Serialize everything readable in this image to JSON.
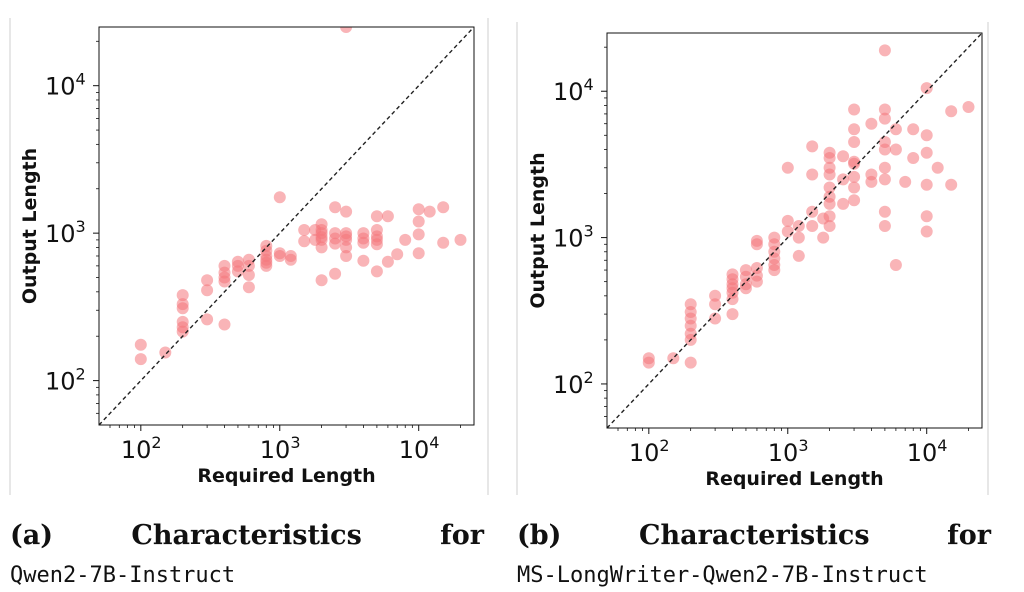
{
  "chart_data": [
    {
      "type": "scatter",
      "title": "",
      "xlabel": "Required Length",
      "ylabel": "Output Length",
      "xscale": "log",
      "yscale": "log",
      "xlim": [
        50,
        25000
      ],
      "ylim": [
        50,
        25000
      ],
      "grid": false,
      "reference_line": "y = x (dashed, black)",
      "x_ticks": [
        {
          "value": 100,
          "base": "10",
          "exp": "2"
        },
        {
          "value": 1000,
          "base": "10",
          "exp": "3"
        },
        {
          "value": 10000,
          "base": "10",
          "exp": "4"
        }
      ],
      "y_ticks": [
        {
          "value": 100,
          "base": "10",
          "exp": "2"
        },
        {
          "value": 1000,
          "base": "10",
          "exp": "3"
        },
        {
          "value": 10000,
          "base": "10",
          "exp": "4"
        }
      ],
      "marker_color": "#f4777b",
      "points": [
        [
          100,
          175
        ],
        [
          100,
          140
        ],
        [
          150,
          155
        ],
        [
          200,
          380
        ],
        [
          200,
          330
        ],
        [
          200,
          310
        ],
        [
          200,
          250
        ],
        [
          200,
          230
        ],
        [
          200,
          215
        ],
        [
          300,
          480
        ],
        [
          300,
          410
        ],
        [
          300,
          260
        ],
        [
          400,
          600
        ],
        [
          400,
          540
        ],
        [
          400,
          500
        ],
        [
          400,
          470
        ],
        [
          400,
          240
        ],
        [
          500,
          640
        ],
        [
          500,
          600
        ],
        [
          500,
          550
        ],
        [
          600,
          660
        ],
        [
          600,
          600
        ],
        [
          600,
          520
        ],
        [
          600,
          430
        ],
        [
          800,
          820
        ],
        [
          800,
          760
        ],
        [
          800,
          700
        ],
        [
          800,
          660
        ],
        [
          800,
          630
        ],
        [
          800,
          600
        ],
        [
          1000,
          1750
        ],
        [
          1000,
          730
        ],
        [
          1000,
          700
        ],
        [
          1200,
          700
        ],
        [
          1200,
          660
        ],
        [
          1500,
          1050
        ],
        [
          1500,
          880
        ],
        [
          1800,
          1050
        ],
        [
          1800,
          900
        ],
        [
          2000,
          1150
        ],
        [
          2000,
          1050
        ],
        [
          2000,
          1000
        ],
        [
          2000,
          940
        ],
        [
          2000,
          900
        ],
        [
          2000,
          800
        ],
        [
          2000,
          480
        ],
        [
          2500,
          1500
        ],
        [
          2500,
          1000
        ],
        [
          2500,
          920
        ],
        [
          2500,
          850
        ],
        [
          2500,
          530
        ],
        [
          3000,
          1400
        ],
        [
          3000,
          1000
        ],
        [
          3000,
          950
        ],
        [
          3000,
          900
        ],
        [
          3000,
          800
        ],
        [
          3000,
          700
        ],
        [
          3000,
          25000
        ],
        [
          4000,
          1000
        ],
        [
          4000,
          920
        ],
        [
          4000,
          860
        ],
        [
          4000,
          650
        ],
        [
          5000,
          1300
        ],
        [
          5000,
          1050
        ],
        [
          5000,
          950
        ],
        [
          5000,
          900
        ],
        [
          5000,
          840
        ],
        [
          5000,
          550
        ],
        [
          6000,
          1300
        ],
        [
          6000,
          640
        ],
        [
          7000,
          720
        ],
        [
          8000,
          900
        ],
        [
          10000,
          1450
        ],
        [
          10000,
          1200
        ],
        [
          10000,
          980
        ],
        [
          10000,
          730
        ],
        [
          12000,
          1400
        ],
        [
          15000,
          1500
        ],
        [
          15000,
          860
        ],
        [
          20000,
          900
        ]
      ]
    },
    {
      "type": "scatter",
      "title": "",
      "xlabel": "Required Length",
      "ylabel": "Output Length",
      "xscale": "log",
      "yscale": "log",
      "xlim": [
        50,
        25000
      ],
      "ylim": [
        50,
        25000
      ],
      "grid": false,
      "reference_line": "y = x (dashed, black)",
      "x_ticks": [
        {
          "value": 100,
          "base": "10",
          "exp": "2"
        },
        {
          "value": 1000,
          "base": "10",
          "exp": "3"
        },
        {
          "value": 10000,
          "base": "10",
          "exp": "4"
        }
      ],
      "y_ticks": [
        {
          "value": 100,
          "base": "10",
          "exp": "2"
        },
        {
          "value": 1000,
          "base": "10",
          "exp": "3"
        },
        {
          "value": 10000,
          "base": "10",
          "exp": "4"
        }
      ],
      "marker_color": "#f4777b",
      "points": [
        [
          100,
          150
        ],
        [
          100,
          140
        ],
        [
          150,
          150
        ],
        [
          200,
          350
        ],
        [
          200,
          310
        ],
        [
          200,
          280
        ],
        [
          200,
          250
        ],
        [
          200,
          220
        ],
        [
          200,
          200
        ],
        [
          200,
          140
        ],
        [
          300,
          400
        ],
        [
          300,
          350
        ],
        [
          300,
          280
        ],
        [
          400,
          560
        ],
        [
          400,
          520
        ],
        [
          400,
          480
        ],
        [
          400,
          450
        ],
        [
          400,
          420
        ],
        [
          400,
          380
        ],
        [
          400,
          300
        ],
        [
          500,
          600
        ],
        [
          500,
          540
        ],
        [
          500,
          480
        ],
        [
          500,
          450
        ],
        [
          600,
          950
        ],
        [
          600,
          900
        ],
        [
          600,
          620
        ],
        [
          600,
          550
        ],
        [
          600,
          500
        ],
        [
          800,
          1000
        ],
        [
          800,
          900
        ],
        [
          800,
          800
        ],
        [
          800,
          720
        ],
        [
          800,
          650
        ],
        [
          800,
          600
        ],
        [
          1000,
          3000
        ],
        [
          1000,
          1300
        ],
        [
          1000,
          1100
        ],
        [
          1200,
          1200
        ],
        [
          1200,
          1000
        ],
        [
          1200,
          750
        ],
        [
          1500,
          4200
        ],
        [
          1500,
          2700
        ],
        [
          1500,
          1500
        ],
        [
          1500,
          1200
        ],
        [
          1800,
          1350
        ],
        [
          1800,
          1000
        ],
        [
          2000,
          3800
        ],
        [
          2000,
          3500
        ],
        [
          2000,
          3000
        ],
        [
          2000,
          2700
        ],
        [
          2000,
          2200
        ],
        [
          2000,
          1900
        ],
        [
          2000,
          1700
        ],
        [
          2000,
          1400
        ],
        [
          2000,
          1200
        ],
        [
          2500,
          3600
        ],
        [
          2500,
          2500
        ],
        [
          2500,
          1700
        ],
        [
          3000,
          7500
        ],
        [
          3000,
          5500
        ],
        [
          3000,
          4500
        ],
        [
          3000,
          3300
        ],
        [
          3000,
          3200
        ],
        [
          3000,
          2600
        ],
        [
          3000,
          2200
        ],
        [
          3000,
          1800
        ],
        [
          4000,
          6000
        ],
        [
          4000,
          2700
        ],
        [
          4000,
          2400
        ],
        [
          5000,
          19000
        ],
        [
          5000,
          7500
        ],
        [
          5000,
          6500
        ],
        [
          5000,
          4500
        ],
        [
          5000,
          4000
        ],
        [
          5000,
          3000
        ],
        [
          5000,
          2500
        ],
        [
          5000,
          1500
        ],
        [
          5000,
          1200
        ],
        [
          6000,
          5500
        ],
        [
          6000,
          4000
        ],
        [
          6000,
          650
        ],
        [
          7000,
          2400
        ],
        [
          8000,
          5500
        ],
        [
          8000,
          3500
        ],
        [
          10000,
          10500
        ],
        [
          10000,
          5000
        ],
        [
          10000,
          3800
        ],
        [
          10000,
          2300
        ],
        [
          10000,
          1400
        ],
        [
          10000,
          1100
        ],
        [
          12000,
          3000
        ],
        [
          15000,
          7300
        ],
        [
          15000,
          2300
        ],
        [
          20000,
          7800
        ]
      ]
    }
  ],
  "captions": [
    {
      "label": "(a)",
      "word1": "Characteristics",
      "word2": "for",
      "model": "Qwen2-7B-Instruct"
    },
    {
      "label": "(b)",
      "word1": "Characteristics",
      "word2": "for",
      "model": "MS-LongWriter-Qwen2-7B-Instruct"
    }
  ]
}
